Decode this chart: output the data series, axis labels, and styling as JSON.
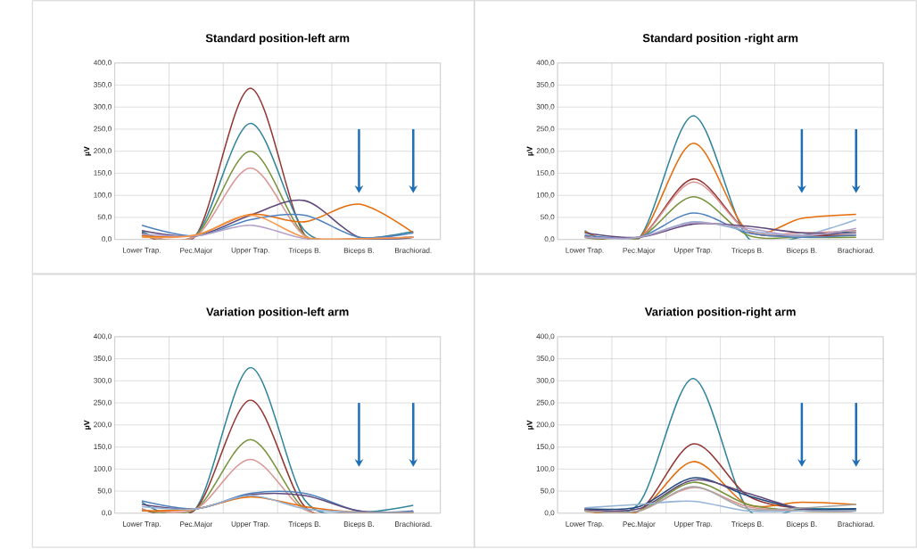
{
  "chart_data": [
    {
      "type": "line",
      "title": "Standard position-left arm",
      "ylabel": "µV",
      "categories": [
        "Lower Trap.",
        "Pec.Major",
        "Upper Trap.",
        "Triceps B.",
        "Biceps B.",
        "Brachiorad."
      ],
      "ylim": [
        0,
        400
      ],
      "yticks": [
        {
          "value": 0,
          "label": "0,0"
        },
        {
          "value": 50,
          "label": "50,0"
        },
        {
          "value": 100,
          "label": "100,0"
        },
        {
          "value": 150,
          "label": "150,0"
        },
        {
          "value": 200,
          "label": "200,0"
        },
        {
          "value": 250,
          "label": "250,0"
        },
        {
          "value": 300,
          "label": "300,0"
        },
        {
          "value": 350,
          "label": "350,0"
        },
        {
          "value": 400,
          "label": "400,0"
        }
      ],
      "grid": true,
      "series": [
        {
          "color": "#953735",
          "values": [
            15,
            10,
            343,
            10,
            2,
            5
          ]
        },
        {
          "color": "#31859c",
          "values": [
            18,
            10,
            263,
            20,
            2,
            18
          ]
        },
        {
          "color": "#77933c",
          "values": [
            10,
            10,
            200,
            10,
            2,
            5
          ]
        },
        {
          "color": "#d99694",
          "values": [
            10,
            8,
            162,
            8,
            2,
            5
          ]
        },
        {
          "color": "#5f497a",
          "values": [
            20,
            8,
            55,
            88,
            5,
            5
          ]
        },
        {
          "color": "#e46c0a",
          "values": [
            8,
            10,
            57,
            40,
            80,
            15
          ]
        },
        {
          "color": "#4f81bd",
          "values": [
            32,
            8,
            45,
            55,
            5,
            15
          ]
        },
        {
          "color": "#b3a2c7",
          "values": [
            12,
            8,
            32,
            2,
            2,
            5
          ]
        },
        {
          "color": "#f79646",
          "values": [
            5,
            10,
            55,
            5,
            2,
            5
          ]
        }
      ]
    },
    {
      "type": "line",
      "title": "Standard position -right arm",
      "ylabel": "µV",
      "categories": [
        "Lower Trap.",
        "Pec.Major",
        "Upper Trap.",
        "Triceps B.",
        "Biceps B.",
        "Brachiorad."
      ],
      "ylim": [
        0,
        400
      ],
      "yticks": [
        {
          "value": 0,
          "label": "0,0"
        },
        {
          "value": 50,
          "label": "50,0"
        },
        {
          "value": 100,
          "label": "100,0"
        },
        {
          "value": 150,
          "label": "150,0"
        },
        {
          "value": 200,
          "label": "200,0"
        },
        {
          "value": 250,
          "label": "250,0"
        },
        {
          "value": 300,
          "label": "300,0"
        },
        {
          "value": 350,
          "label": "350,0"
        },
        {
          "value": 400,
          "label": "400,0"
        }
      ],
      "grid": true,
      "series": [
        {
          "color": "#31859c",
          "values": [
            20,
            3,
            280,
            5,
            5,
            20
          ]
        },
        {
          "color": "#e46c0a",
          "values": [
            18,
            3,
            218,
            20,
            48,
            57
          ]
        },
        {
          "color": "#953735",
          "values": [
            8,
            3,
            137,
            20,
            10,
            10
          ]
        },
        {
          "color": "#d99694",
          "values": [
            5,
            3,
            130,
            20,
            15,
            20
          ]
        },
        {
          "color": "#77933c",
          "values": [
            5,
            3,
            97,
            10,
            5,
            5
          ]
        },
        {
          "color": "#4f81bd",
          "values": [
            10,
            5,
            60,
            15,
            5,
            10
          ]
        },
        {
          "color": "#95b3d7",
          "values": [
            5,
            5,
            40,
            20,
            10,
            45
          ]
        },
        {
          "color": "#5f497a",
          "values": [
            15,
            5,
            35,
            30,
            15,
            15
          ]
        },
        {
          "color": "#b3a2c7",
          "values": [
            5,
            5,
            38,
            25,
            8,
            25
          ]
        }
      ]
    },
    {
      "type": "line",
      "title": "Variation position-left arm",
      "ylabel": "µV",
      "categories": [
        "Lower Trap.",
        "Pec.Major",
        "Upper Trap.",
        "Triceps B.",
        "Biceps B.",
        "Brachiorad."
      ],
      "ylim": [
        0,
        400
      ],
      "yticks": [
        {
          "value": 0,
          "label": "0,0"
        },
        {
          "value": 50,
          "label": "50,0"
        },
        {
          "value": 100,
          "label": "100,0"
        },
        {
          "value": 150,
          "label": "150,0"
        },
        {
          "value": 200,
          "label": "200,0"
        },
        {
          "value": 250,
          "label": "250,0"
        },
        {
          "value": 300,
          "label": "300,0"
        },
        {
          "value": 350,
          "label": "350,0"
        },
        {
          "value": 400,
          "label": "400,0"
        }
      ],
      "grid": true,
      "series": [
        {
          "color": "#31859c",
          "values": [
            25,
            12,
            330,
            30,
            3,
            18
          ]
        },
        {
          "color": "#953735",
          "values": [
            10,
            10,
            256,
            15,
            2,
            2
          ]
        },
        {
          "color": "#77933c",
          "values": [
            8,
            10,
            167,
            10,
            2,
            2
          ]
        },
        {
          "color": "#d99694",
          "values": [
            8,
            10,
            122,
            8,
            2,
            2
          ]
        },
        {
          "color": "#4f81bd",
          "values": [
            28,
            10,
            45,
            45,
            5,
            5
          ]
        },
        {
          "color": "#5f497a",
          "values": [
            20,
            10,
            42,
            40,
            5,
            3
          ]
        },
        {
          "color": "#e46c0a",
          "values": [
            5,
            10,
            37,
            15,
            2,
            2
          ]
        },
        {
          "color": "#95b3d7",
          "values": [
            15,
            10,
            40,
            10,
            2,
            2
          ]
        }
      ]
    },
    {
      "type": "line",
      "title": "Variation position-right arm",
      "ylabel": "µV",
      "categories": [
        "Lower Trap.",
        "Pec.Major",
        "Upper Trap.",
        "Triceps B.",
        "Biceps B.",
        "Brachiorad."
      ],
      "ylim": [
        0,
        400
      ],
      "yticks": [
        {
          "value": 0,
          "label": "0,0"
        },
        {
          "value": 50,
          "label": "50,0"
        },
        {
          "value": 100,
          "label": "100,0"
        },
        {
          "value": 150,
          "label": "150,0"
        },
        {
          "value": 200,
          "label": "200,0"
        },
        {
          "value": 250,
          "label": "250,0"
        },
        {
          "value": 300,
          "label": "300,0"
        },
        {
          "value": 350,
          "label": "350,0"
        },
        {
          "value": 400,
          "label": "400,0"
        }
      ],
      "grid": true,
      "series": [
        {
          "color": "#31859c",
          "values": [
            12,
            22,
            305,
            10,
            10,
            10
          ]
        },
        {
          "color": "#953735",
          "values": [
            8,
            5,
            157,
            40,
            10,
            5
          ]
        },
        {
          "color": "#e46c0a",
          "values": [
            5,
            5,
            117,
            20,
            25,
            20
          ]
        },
        {
          "color": "#1f497d",
          "values": [
            10,
            15,
            80,
            40,
            10,
            10
          ]
        },
        {
          "color": "#5f497a",
          "values": [
            8,
            10,
            75,
            45,
            10,
            5
          ]
        },
        {
          "color": "#77933c",
          "values": [
            5,
            5,
            70,
            20,
            5,
            5
          ]
        },
        {
          "color": "#d99694",
          "values": [
            5,
            5,
            58,
            15,
            5,
            5
          ]
        },
        {
          "color": "#95b3d7",
          "values": [
            12,
            20,
            27,
            5,
            5,
            5
          ]
        },
        {
          "color": "#a6a6a6",
          "values": [
            5,
            5,
            60,
            10,
            12,
            20
          ]
        }
      ]
    }
  ]
}
